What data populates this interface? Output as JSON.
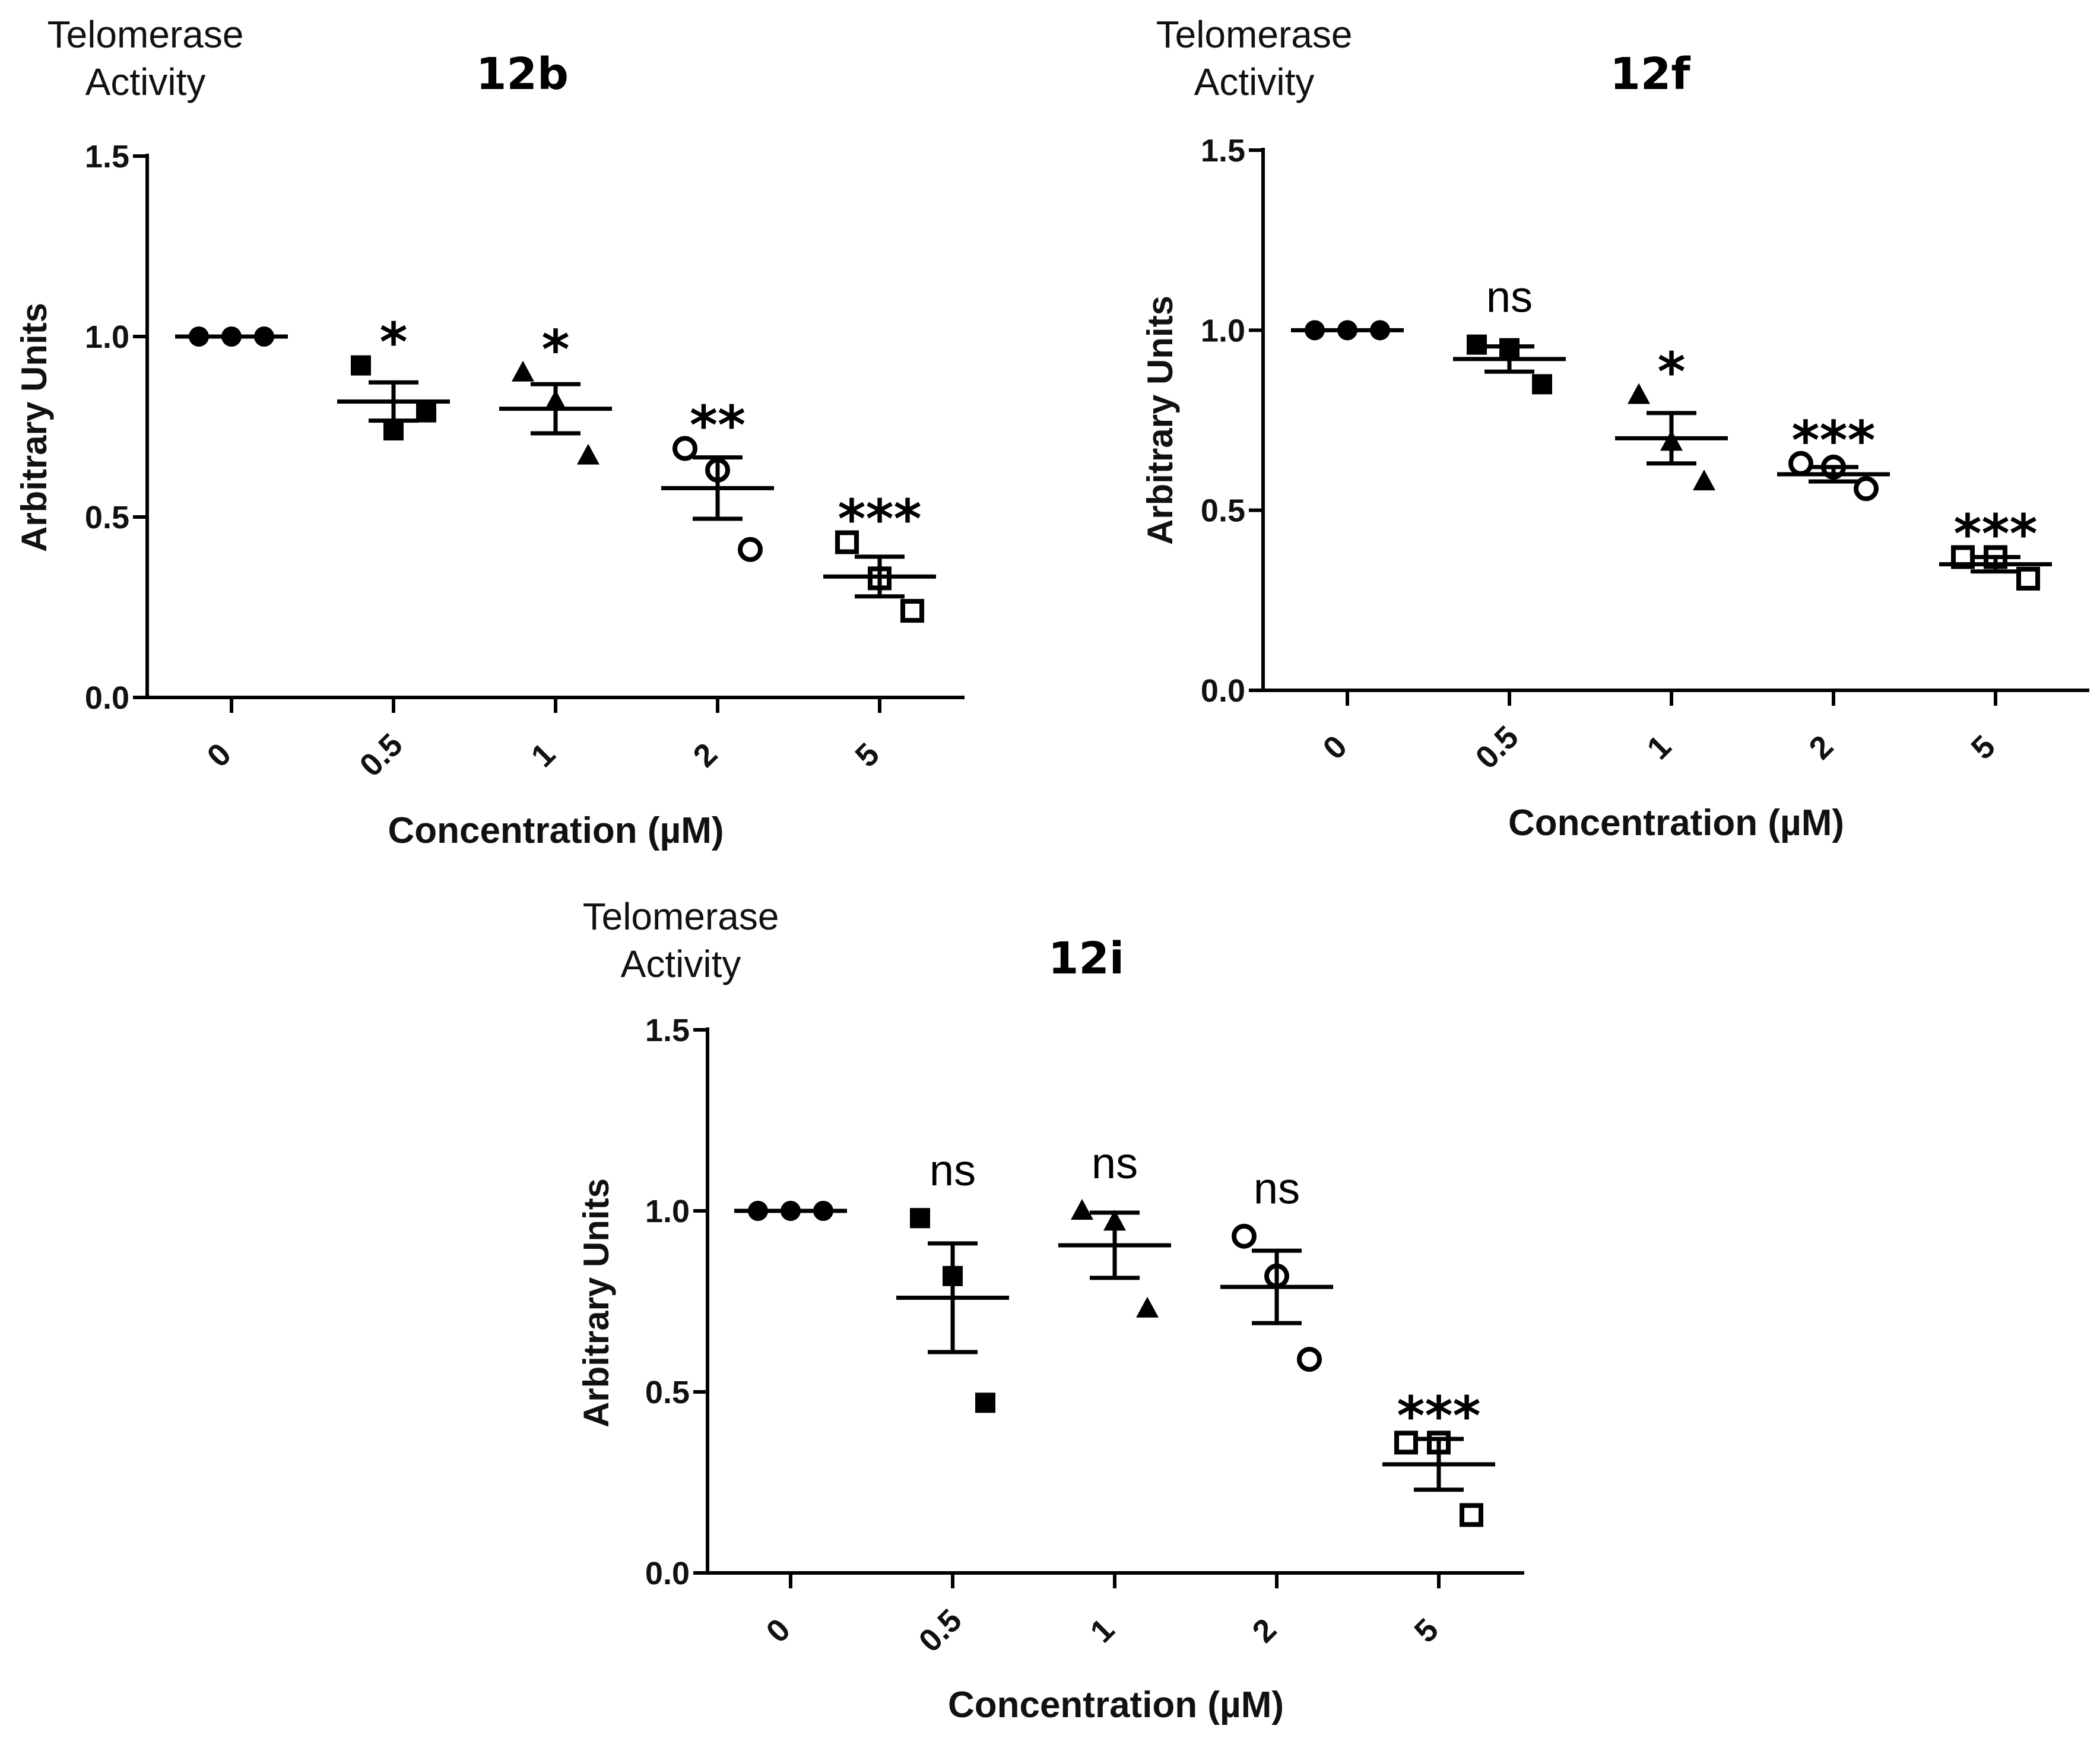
{
  "chart_data": [
    {
      "type": "scatter",
      "title": "12b",
      "header": "Telomerase Activity",
      "xlabel": "Concentration (µM)",
      "ylabel": "Arbitrary Units",
      "ylim": [
        0,
        1.5
      ],
      "yticks": [
        "0.0",
        "0.5",
        "1.0",
        "1.5"
      ],
      "categories": [
        "0",
        "0.5",
        "1",
        "2",
        "5"
      ],
      "series": [
        {
          "category": "0",
          "marker": "filled-circle",
          "points": [
            1.0,
            1.0,
            1.0
          ],
          "mean": 1.0,
          "sem": 0.0,
          "significance": ""
        },
        {
          "category": "0.5",
          "marker": "filled-square",
          "points": [
            0.92,
            0.74,
            0.79
          ],
          "mean": 0.82,
          "sem": 0.053,
          "significance": "*"
        },
        {
          "category": "1",
          "marker": "filled-triangle",
          "points": [
            0.9,
            0.82,
            0.67
          ],
          "mean": 0.8,
          "sem": 0.068,
          "significance": "*"
        },
        {
          "category": "2",
          "marker": "open-circle",
          "points": [
            0.69,
            0.63,
            0.41
          ],
          "mean": 0.58,
          "sem": 0.085,
          "significance": "**"
        },
        {
          "category": "5",
          "marker": "open-square",
          "points": [
            0.43,
            0.33,
            0.24
          ],
          "mean": 0.335,
          "sem": 0.055,
          "significance": "***"
        }
      ]
    },
    {
      "type": "scatter",
      "title": "12f",
      "header": "Telomerase Activity",
      "xlabel": "Concentration (µM)",
      "ylabel": "Arbitrary Units",
      "ylim": [
        0,
        1.5
      ],
      "yticks": [
        "0.0",
        "0.5",
        "1.0",
        "1.5"
      ],
      "categories": [
        "0",
        "0.5",
        "1",
        "2",
        "5"
      ],
      "series": [
        {
          "category": "0",
          "marker": "filled-circle",
          "points": [
            1.0,
            1.0,
            1.0
          ],
          "mean": 1.0,
          "sem": 0.0,
          "significance": ""
        },
        {
          "category": "0.5",
          "marker": "filled-square",
          "points": [
            0.96,
            0.95,
            0.85
          ],
          "mean": 0.92,
          "sem": 0.035,
          "significance": "ns"
        },
        {
          "category": "1",
          "marker": "filled-triangle",
          "points": [
            0.82,
            0.69,
            0.58
          ],
          "mean": 0.7,
          "sem": 0.07,
          "significance": "*"
        },
        {
          "category": "2",
          "marker": "open-circle",
          "points": [
            0.63,
            0.62,
            0.56
          ],
          "mean": 0.6,
          "sem": 0.02,
          "significance": "***"
        },
        {
          "category": "5",
          "marker": "open-square",
          "points": [
            0.37,
            0.37,
            0.31
          ],
          "mean": 0.35,
          "sem": 0.02,
          "significance": "***"
        }
      ]
    },
    {
      "type": "scatter",
      "title": "12i",
      "header": "Telomerase Activity",
      "xlabel": "Concentration (µM)",
      "ylabel": "Arbitrary Units",
      "ylim": [
        0,
        1.5
      ],
      "yticks": [
        "0.0",
        "0.5",
        "1.0",
        "1.5"
      ],
      "categories": [
        "0",
        "0.5",
        "1",
        "2",
        "5"
      ],
      "series": [
        {
          "category": "0",
          "marker": "filled-circle",
          "points": [
            1.0,
            1.0,
            1.0
          ],
          "mean": 1.0,
          "sem": 0.0,
          "significance": ""
        },
        {
          "category": "0.5",
          "marker": "filled-square",
          "points": [
            0.98,
            0.82,
            0.47
          ],
          "mean": 0.76,
          "sem": 0.15,
          "significance": "ns"
        },
        {
          "category": "1",
          "marker": "filled-triangle",
          "points": [
            1.0,
            0.97,
            0.73
          ],
          "mean": 0.905,
          "sem": 0.09,
          "significance": "ns"
        },
        {
          "category": "2",
          "marker": "open-circle",
          "points": [
            0.93,
            0.82,
            0.59
          ],
          "mean": 0.79,
          "sem": 0.1,
          "significance": "ns"
        },
        {
          "category": "5",
          "marker": "open-square",
          "points": [
            0.36,
            0.36,
            0.16
          ],
          "mean": 0.3,
          "sem": 0.07,
          "significance": "***"
        }
      ]
    }
  ]
}
